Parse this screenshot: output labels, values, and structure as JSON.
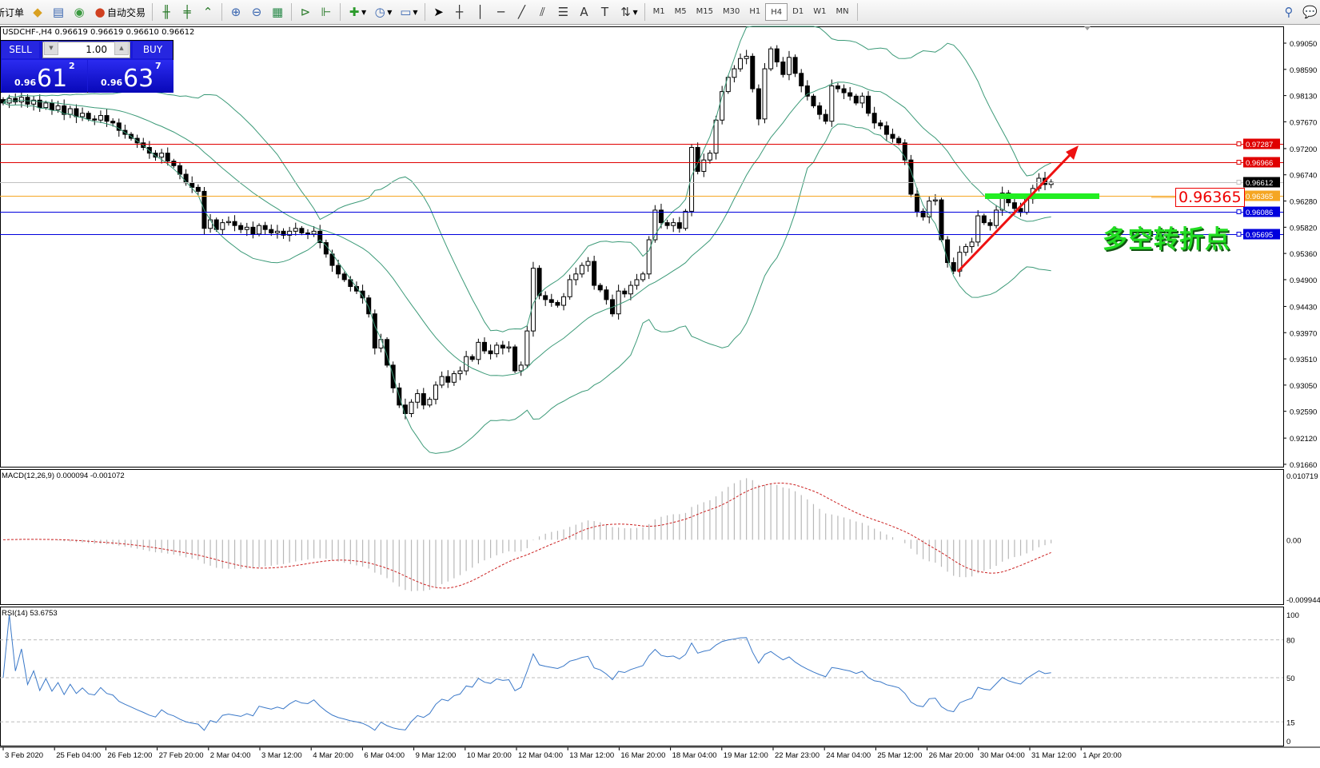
{
  "toolbar": {
    "new_order": "新订单",
    "auto_trading": "自动交易",
    "timeframes": [
      "M1",
      "M5",
      "M15",
      "M30",
      "H1",
      "H4",
      "D1",
      "W1",
      "MN"
    ],
    "active_timeframe": "H4"
  },
  "chart_header": "USDCHF-,H4  0.96619 0.96619 0.96610 0.96612",
  "trade_panel": {
    "sell_label": "SELL",
    "buy_label": "BUY",
    "lot": "1.00",
    "bid_prefix": "0.96",
    "bid_big": "61",
    "bid_pip": "2",
    "ask_prefix": "0.96",
    "ask_big": "63",
    "ask_pip": "7"
  },
  "annotations": {
    "price_tag": "0.96365",
    "text": "多空转折点",
    "arrow_color": "#ee1111",
    "zone_color": "#22ee22"
  },
  "chart_data": {
    "type": "candlestick",
    "symbol": "USDCHF-",
    "timeframe": "H4",
    "ylim": [
      0.9166,
      0.9905
    ],
    "price_ticks": [
      "0.99050",
      "0.98590",
      "0.98130",
      "0.97670",
      "0.97200",
      "0.96740",
      "0.96280",
      "0.95820",
      "0.95360",
      "0.94900",
      "0.94430",
      "0.93970",
      "0.93510",
      "0.93050",
      "0.92590",
      "0.92120",
      "0.91660"
    ],
    "horizontal_lines": [
      {
        "price": 0.97287,
        "label": "0.97287",
        "color": "#e00000"
      },
      {
        "price": 0.96966,
        "label": "0.96966",
        "color": "#e00000"
      },
      {
        "price": 0.96612,
        "label": "0.96612",
        "color": "#000000",
        "line": "#c0c0c0"
      },
      {
        "price": 0.96365,
        "label": "0.96365",
        "color": "#f5a623"
      },
      {
        "price": 0.96086,
        "label": "0.96086",
        "color": "#0000dd"
      },
      {
        "price": 0.95695,
        "label": "0.95695",
        "color": "#0000dd"
      }
    ],
    "time_labels": [
      "3 Feb 2020",
      "25 Feb 04:00",
      "26 Feb 12:00",
      "27 Feb 20:00",
      "2 Mar 04:00",
      "3 Mar 12:00",
      "4 Mar 20:00",
      "6 Mar 04:00",
      "9 Mar 12:00",
      "10 Mar 20:00",
      "12 Mar 04:00",
      "13 Mar 12:00",
      "16 Mar 20:00",
      "18 Mar 04:00",
      "19 Mar 12:00",
      "22 Mar 23:00",
      "24 Mar 04:00",
      "25 Mar 12:00",
      "26 Mar 20:00",
      "30 Mar 04:00",
      "31 Mar 12:00",
      "1 Apr 20:00"
    ],
    "closes": [
      0.98,
      0.9808,
      0.9802,
      0.981,
      0.9798,
      0.9805,
      0.9792,
      0.98,
      0.9788,
      0.9795,
      0.978,
      0.979,
      0.9776,
      0.9782,
      0.9772,
      0.977,
      0.9778,
      0.9768,
      0.9765,
      0.9752,
      0.9745,
      0.9738,
      0.973,
      0.9722,
      0.9712,
      0.9705,
      0.9712,
      0.9698,
      0.969,
      0.9675,
      0.966,
      0.9652,
      0.9645,
      0.958,
      0.9595,
      0.9578,
      0.959,
      0.9592,
      0.9585,
      0.9578,
      0.9582,
      0.957,
      0.9585,
      0.9578,
      0.9572,
      0.9575,
      0.9568,
      0.9575,
      0.958,
      0.9572,
      0.957,
      0.9575,
      0.9555,
      0.9535,
      0.9515,
      0.95,
      0.949,
      0.9478,
      0.947,
      0.9458,
      0.943,
      0.937,
      0.9385,
      0.934,
      0.93,
      0.927,
      0.9255,
      0.9275,
      0.929,
      0.927,
      0.928,
      0.9305,
      0.932,
      0.931,
      0.9325,
      0.933,
      0.9355,
      0.935,
      0.938,
      0.9365,
      0.936,
      0.9375,
      0.937,
      0.9372,
      0.933,
      0.934,
      0.94,
      0.951,
      0.9462,
      0.9455,
      0.945,
      0.9445,
      0.946,
      0.949,
      0.95,
      0.9515,
      0.9522,
      0.948,
      0.9472,
      0.9455,
      0.943,
      0.947,
      0.9465,
      0.948,
      0.949,
      0.95,
      0.956,
      0.9612,
      0.959,
      0.9585,
      0.959,
      0.958,
      0.961,
      0.9722,
      0.968,
      0.97,
      0.9712,
      0.977,
      0.982,
      0.9845,
      0.986,
      0.9878,
      0.9882,
      0.9825,
      0.9772,
      0.986,
      0.9895,
      0.9872,
      0.985,
      0.988,
      0.9852,
      0.983,
      0.9812,
      0.9795,
      0.978,
      0.9768,
      0.983,
      0.9825,
      0.9818,
      0.9812,
      0.98,
      0.9812,
      0.9782,
      0.9765,
      0.976,
      0.9745,
      0.9738,
      0.973,
      0.97,
      0.964,
      0.961,
      0.96,
      0.9628,
      0.963,
      0.956,
      0.952,
      0.9505,
      0.9538,
      0.9548,
      0.9556,
      0.9602,
      0.959,
      0.9585,
      0.9612,
      0.9642,
      0.9625,
      0.9615,
      0.9608,
      0.9632,
      0.965,
      0.9668,
      0.9657,
      0.9661
    ],
    "indicators": {
      "bollinger_color": "#3c9a78",
      "macd": {
        "label": "MACD(12,26,9) 0.000094 -0.001072",
        "ylim": [
          -0.009944,
          0.010719
        ],
        "ticks": [
          "0.010719",
          "0.00",
          "-0.009944"
        ],
        "signal_color": "#cc2222",
        "hist_color": "#b8b8b8"
      },
      "rsi": {
        "label": "RSI(14) 53.6753",
        "ylim": [
          0,
          100
        ],
        "ticks": [
          "100",
          "80",
          "50",
          "15",
          "0"
        ],
        "levels": [
          80,
          50,
          15
        ],
        "color": "#3a78c8"
      }
    }
  }
}
